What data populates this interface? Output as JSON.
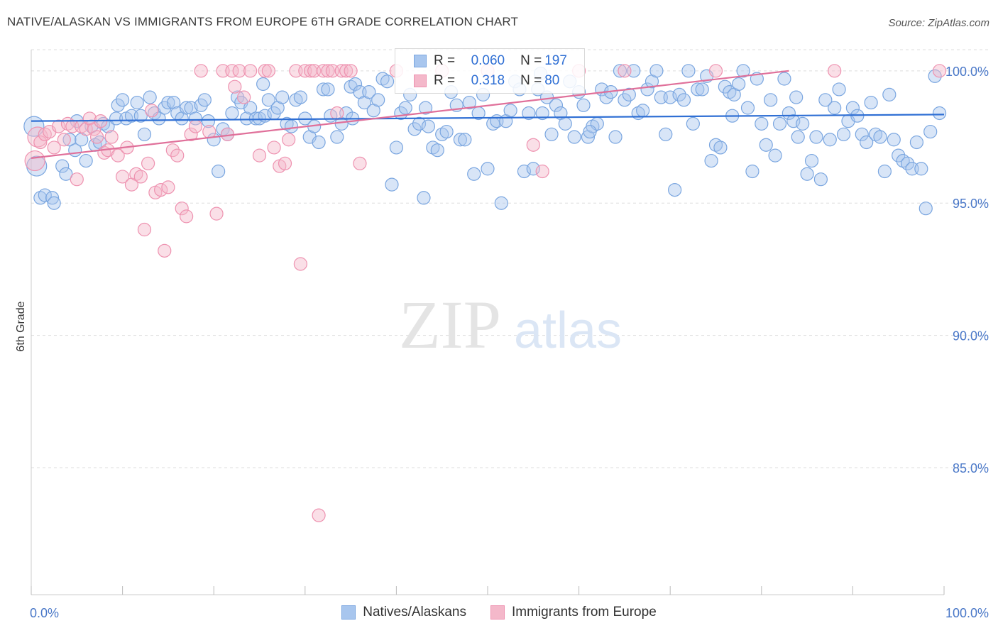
{
  "title": "NATIVE/ALASKAN VS IMMIGRANTS FROM EUROPE 6TH GRADE CORRELATION CHART",
  "source": "Source: ZipAtlas.com",
  "watermark": {
    "zip": "ZIP",
    "atlas": "atlas"
  },
  "colors": {
    "blue_fill": "#a8c6ee",
    "blue_stroke": "#7aa6e0",
    "blue_line": "#2f6fd4",
    "pink_fill": "#f4b8ca",
    "pink_stroke": "#ee92b0",
    "pink_line": "#e0709a",
    "grid": "#dddddd",
    "axis_text": "#4a78c8"
  },
  "legend_top": {
    "rows": [
      {
        "r_label": "R =",
        "r_value": "0.060",
        "n_label": "N =",
        "n_value": "197"
      },
      {
        "r_label": "R =",
        "r_value": "0.318",
        "n_label": "N =",
        "n_value": "80"
      }
    ]
  },
  "legend_bottom": [
    "Natives/Alaskans",
    "Immigrants from Europe"
  ],
  "chart_data": {
    "type": "scatter",
    "title": "NATIVE/ALASKAN VS IMMIGRANTS FROM EUROPE 6TH GRADE CORRELATION CHART",
    "xlabel": "",
    "ylabel": "6th Grade",
    "xlim": [
      0,
      100
    ],
    "ylim": [
      80.2,
      100.8
    ],
    "x_tick_labels": [
      "0.0%",
      "100.0%"
    ],
    "y_ticks": [
      100,
      95,
      90,
      85
    ],
    "y_tick_labels": [
      "100.0%",
      "95.0%",
      "90.0%",
      "85.0%"
    ],
    "grid": true,
    "series": [
      {
        "name": "Natives/Alaskans",
        "r": 0.06,
        "n": 197,
        "trend": {
          "x": [
            0,
            100
          ],
          "y": [
            98.1,
            98.35
          ]
        },
        "points": [
          [
            0.3,
            97.9
          ],
          [
            0.6,
            96.4
          ],
          [
            1.0,
            95.2
          ],
          [
            1.5,
            95.3
          ],
          [
            2.3,
            95.2
          ],
          [
            2.5,
            95.0
          ],
          [
            3.4,
            96.4
          ],
          [
            3.8,
            96.1
          ],
          [
            4.2,
            97.4
          ],
          [
            4.8,
            97.0
          ],
          [
            5.0,
            98.1
          ],
          [
            5.5,
            97.4
          ],
          [
            6.0,
            96.6
          ],
          [
            6.6,
            97.9
          ],
          [
            7.0,
            97.2
          ],
          [
            7.5,
            97.3
          ],
          [
            7.9,
            98.0
          ],
          [
            8.4,
            97.9
          ],
          [
            9.3,
            98.2
          ],
          [
            9.5,
            98.7
          ],
          [
            10.0,
            98.9
          ],
          [
            10.4,
            98.2
          ],
          [
            11.0,
            98.3
          ],
          [
            11.6,
            98.8
          ],
          [
            12.0,
            98.3
          ],
          [
            12.4,
            97.6
          ],
          [
            13.0,
            99.0
          ],
          [
            13.5,
            98.4
          ],
          [
            14.0,
            98.2
          ],
          [
            14.6,
            98.6
          ],
          [
            15.0,
            98.8
          ],
          [
            15.6,
            98.8
          ],
          [
            16.0,
            98.4
          ],
          [
            16.5,
            98.2
          ],
          [
            17.0,
            98.6
          ],
          [
            17.5,
            98.6
          ],
          [
            18.0,
            98.2
          ],
          [
            18.6,
            98.7
          ],
          [
            19.0,
            98.9
          ],
          [
            19.4,
            98.1
          ],
          [
            20.0,
            97.4
          ],
          [
            20.5,
            96.2
          ],
          [
            21.0,
            97.8
          ],
          [
            21.5,
            97.6
          ],
          [
            22.0,
            98.4
          ],
          [
            22.6,
            99.0
          ],
          [
            23.0,
            98.8
          ],
          [
            23.6,
            98.2
          ],
          [
            24.0,
            98.6
          ],
          [
            24.6,
            98.2
          ],
          [
            25.0,
            98.2
          ],
          [
            25.6,
            98.3
          ],
          [
            26.0,
            98.9
          ],
          [
            26.6,
            98.4
          ],
          [
            27.0,
            98.6
          ],
          [
            27.5,
            99.0
          ],
          [
            28.0,
            98.0
          ],
          [
            28.5,
            97.9
          ],
          [
            29.0,
            98.9
          ],
          [
            29.5,
            99.0
          ],
          [
            30.0,
            98.2
          ],
          [
            30.5,
            97.5
          ],
          [
            31.0,
            97.9
          ],
          [
            31.5,
            97.3
          ],
          [
            32.0,
            99.3
          ],
          [
            32.5,
            99.3
          ],
          [
            32.8,
            98.3
          ],
          [
            33.5,
            97.5
          ],
          [
            34.0,
            98.0
          ],
          [
            34.5,
            98.4
          ],
          [
            35.0,
            99.4
          ],
          [
            35.5,
            99.5
          ],
          [
            36.0,
            99.2
          ],
          [
            36.5,
            98.8
          ],
          [
            37.0,
            99.2
          ],
          [
            37.5,
            98.5
          ],
          [
            38.0,
            98.9
          ],
          [
            38.5,
            99.7
          ],
          [
            39.0,
            99.6
          ],
          [
            39.5,
            95.7
          ],
          [
            40.0,
            97.1
          ],
          [
            40.5,
            98.4
          ],
          [
            41.0,
            98.6
          ],
          [
            41.5,
            99.1
          ],
          [
            42.0,
            97.8
          ],
          [
            42.5,
            98.0
          ],
          [
            43.0,
            95.2
          ],
          [
            43.5,
            97.9
          ],
          [
            44.0,
            97.1
          ],
          [
            44.5,
            97.0
          ],
          [
            45.0,
            97.6
          ],
          [
            45.5,
            97.7
          ],
          [
            46.0,
            99.2
          ],
          [
            46.6,
            98.7
          ],
          [
            47.0,
            97.4
          ],
          [
            47.5,
            97.4
          ],
          [
            48.0,
            98.8
          ],
          [
            48.5,
            96.1
          ],
          [
            49.0,
            98.4
          ],
          [
            49.5,
            99.1
          ],
          [
            50.0,
            96.3
          ],
          [
            50.6,
            98.0
          ],
          [
            51.0,
            98.1
          ],
          [
            51.5,
            95.0
          ],
          [
            52.0,
            98.1
          ],
          [
            52.5,
            98.5
          ],
          [
            53.0,
            99.6
          ],
          [
            53.5,
            99.3
          ],
          [
            54.0,
            96.2
          ],
          [
            54.5,
            98.4
          ],
          [
            55.0,
            96.3
          ],
          [
            55.5,
            99.3
          ],
          [
            56.0,
            98.4
          ],
          [
            56.5,
            99.0
          ],
          [
            57.0,
            97.6
          ],
          [
            57.5,
            98.7
          ],
          [
            58.0,
            98.4
          ],
          [
            58.5,
            98.0
          ],
          [
            59.0,
            99.6
          ],
          [
            59.5,
            97.5
          ],
          [
            60.0,
            99.2
          ],
          [
            60.5,
            98.7
          ],
          [
            61.0,
            97.5
          ],
          [
            61.5,
            97.9
          ],
          [
            62.0,
            98.0
          ],
          [
            62.5,
            99.3
          ],
          [
            63.0,
            99.0
          ],
          [
            63.5,
            99.2
          ],
          [
            64.0,
            97.5
          ],
          [
            64.5,
            100.0
          ],
          [
            65.0,
            98.9
          ],
          [
            65.5,
            99.1
          ],
          [
            66.0,
            100.0
          ],
          [
            66.5,
            98.4
          ],
          [
            67.0,
            98.5
          ],
          [
            67.5,
            99.3
          ],
          [
            68.0,
            99.6
          ],
          [
            68.5,
            100.0
          ],
          [
            69.0,
            99.0
          ],
          [
            69.5,
            97.6
          ],
          [
            70.0,
            99.0
          ],
          [
            70.5,
            95.5
          ],
          [
            71.0,
            99.1
          ],
          [
            71.5,
            98.9
          ],
          [
            72.0,
            100.0
          ],
          [
            72.5,
            98.0
          ],
          [
            73.0,
            99.3
          ],
          [
            73.5,
            99.3
          ],
          [
            74.0,
            99.8
          ],
          [
            74.5,
            96.6
          ],
          [
            75.0,
            97.2
          ],
          [
            75.5,
            97.1
          ],
          [
            76.0,
            99.4
          ],
          [
            76.5,
            99.2
          ],
          [
            77.0,
            99.1
          ],
          [
            77.5,
            99.5
          ],
          [
            78.0,
            100.0
          ],
          [
            78.5,
            98.6
          ],
          [
            79.0,
            96.2
          ],
          [
            79.5,
            99.7
          ],
          [
            80.0,
            98.0
          ],
          [
            80.5,
            97.2
          ],
          [
            81.0,
            98.9
          ],
          [
            81.5,
            96.8
          ],
          [
            82.0,
            98.0
          ],
          [
            82.5,
            99.7
          ],
          [
            83.0,
            98.4
          ],
          [
            83.5,
            98.1
          ],
          [
            84.0,
            97.5
          ],
          [
            84.5,
            98.0
          ],
          [
            85.0,
            96.1
          ],
          [
            85.5,
            96.6
          ],
          [
            86.0,
            97.5
          ],
          [
            86.5,
            95.9
          ],
          [
            87.0,
            98.9
          ],
          [
            87.5,
            97.4
          ],
          [
            88.0,
            98.6
          ],
          [
            88.5,
            99.3
          ],
          [
            89.0,
            97.6
          ],
          [
            89.5,
            98.1
          ],
          [
            90.0,
            98.6
          ],
          [
            90.5,
            98.3
          ],
          [
            91.0,
            97.6
          ],
          [
            91.5,
            97.3
          ],
          [
            92.0,
            98.8
          ],
          [
            92.5,
            97.6
          ],
          [
            93.0,
            97.5
          ],
          [
            93.5,
            96.2
          ],
          [
            94.0,
            99.1
          ],
          [
            94.5,
            97.4
          ],
          [
            95.0,
            96.8
          ],
          [
            95.5,
            96.6
          ],
          [
            96.0,
            96.5
          ],
          [
            96.5,
            96.3
          ],
          [
            97.0,
            97.3
          ],
          [
            97.5,
            96.3
          ],
          [
            98.0,
            94.8
          ],
          [
            98.5,
            97.7
          ],
          [
            99.0,
            99.8
          ],
          [
            99.5,
            98.4
          ],
          [
            35.2,
            98.2
          ],
          [
            43.2,
            98.6
          ],
          [
            25.4,
            99.5
          ],
          [
            55.8,
            99.9
          ],
          [
            61.2,
            97.7
          ],
          [
            76.8,
            98.3
          ],
          [
            83.8,
            99.0
          ]
        ]
      },
      {
        "name": "Immigrants from Europe",
        "r": 0.318,
        "n": 80,
        "trend": {
          "x": [
            0,
            83
          ],
          "y": [
            96.7,
            100.0
          ]
        },
        "points": [
          [
            0.4,
            96.6
          ],
          [
            0.7,
            97.5
          ],
          [
            1.0,
            97.3
          ],
          [
            1.5,
            97.6
          ],
          [
            2.0,
            97.7
          ],
          [
            2.5,
            97.1
          ],
          [
            3.0,
            97.9
          ],
          [
            3.6,
            97.4
          ],
          [
            4.0,
            98.0
          ],
          [
            4.5,
            97.9
          ],
          [
            5.0,
            95.9
          ],
          [
            5.5,
            97.9
          ],
          [
            6.0,
            97.8
          ],
          [
            6.4,
            98.2
          ],
          [
            6.9,
            97.8
          ],
          [
            7.2,
            97.5
          ],
          [
            7.6,
            98.1
          ],
          [
            8.0,
            96.9
          ],
          [
            8.4,
            97.0
          ],
          [
            8.8,
            97.5
          ],
          [
            9.5,
            96.8
          ],
          [
            10.0,
            96.0
          ],
          [
            10.5,
            97.1
          ],
          [
            11.0,
            95.7
          ],
          [
            11.5,
            96.1
          ],
          [
            12.0,
            96.0
          ],
          [
            12.4,
            94.0
          ],
          [
            12.8,
            96.5
          ],
          [
            13.2,
            98.5
          ],
          [
            13.6,
            95.4
          ],
          [
            14.2,
            95.5
          ],
          [
            14.6,
            93.2
          ],
          [
            15.0,
            95.6
          ],
          [
            15.5,
            97.0
          ],
          [
            16.0,
            96.8
          ],
          [
            16.5,
            94.8
          ],
          [
            17.0,
            94.5
          ],
          [
            17.5,
            97.6
          ],
          [
            18.0,
            97.9
          ],
          [
            18.6,
            100.0
          ],
          [
            19.5,
            97.7
          ],
          [
            20.3,
            94.6
          ],
          [
            21.0,
            100.0
          ],
          [
            21.5,
            97.6
          ],
          [
            22.0,
            100.0
          ],
          [
            22.3,
            99.4
          ],
          [
            22.8,
            100.0
          ],
          [
            23.3,
            99.0
          ],
          [
            24.0,
            100.0
          ],
          [
            25.0,
            96.8
          ],
          [
            25.6,
            100.0
          ],
          [
            26.0,
            100.0
          ],
          [
            26.6,
            97.1
          ],
          [
            27.2,
            96.4
          ],
          [
            27.8,
            96.5
          ],
          [
            28.2,
            97.4
          ],
          [
            29.0,
            100.0
          ],
          [
            29.5,
            92.7
          ],
          [
            30.0,
            100.0
          ],
          [
            30.6,
            100.0
          ],
          [
            31.0,
            100.0
          ],
          [
            31.5,
            83.2
          ],
          [
            32.0,
            100.0
          ],
          [
            32.5,
            100.0
          ],
          [
            33.0,
            100.0
          ],
          [
            33.5,
            98.4
          ],
          [
            34.0,
            100.0
          ],
          [
            34.5,
            100.0
          ],
          [
            35.0,
            100.0
          ],
          [
            36.0,
            96.5
          ],
          [
            40.0,
            100.0
          ],
          [
            45.0,
            100.0
          ],
          [
            50.0,
            100.0
          ],
          [
            55.0,
            97.2
          ],
          [
            56.0,
            96.2
          ],
          [
            60.0,
            100.0
          ],
          [
            65.0,
            100.0
          ],
          [
            75.0,
            100.0
          ],
          [
            88.0,
            100.0
          ],
          [
            99.5,
            100.0
          ]
        ]
      }
    ]
  }
}
